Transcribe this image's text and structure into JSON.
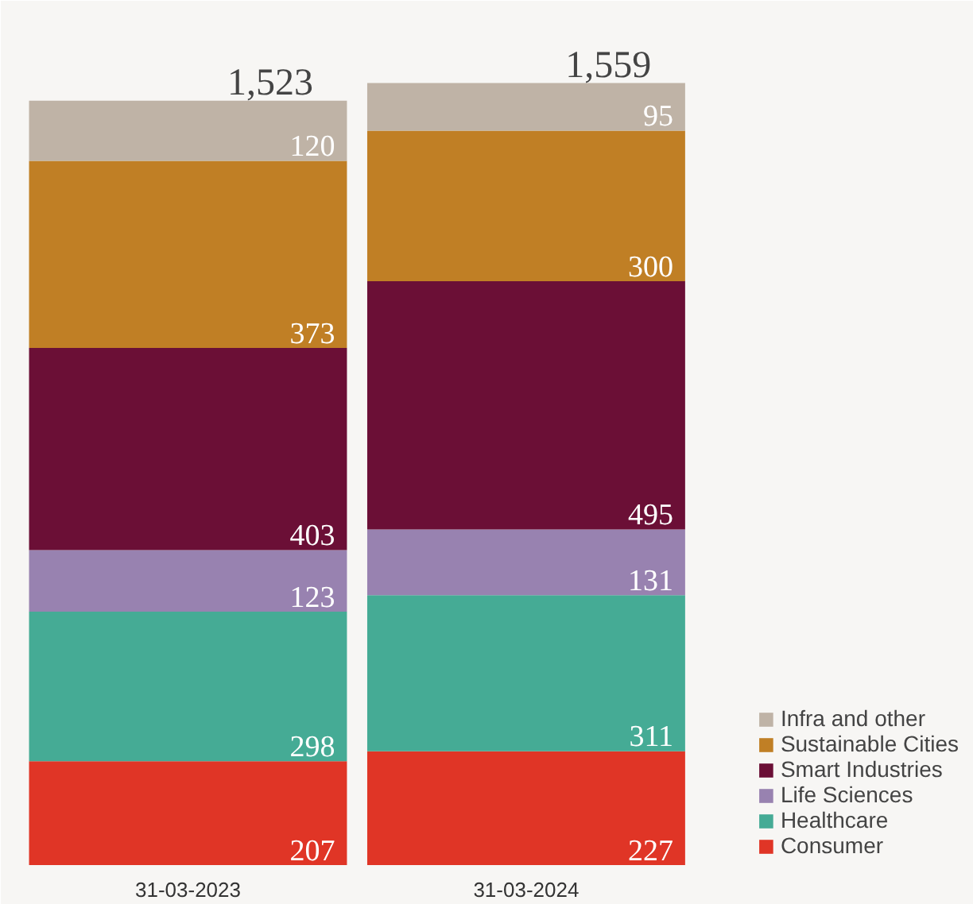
{
  "chart_data": {
    "type": "bar",
    "stacked": true,
    "categories": [
      "31-03-2023",
      "31-03-2024"
    ],
    "series": [
      {
        "name": "Consumer",
        "color": "#e03526",
        "values": [
          207,
          227
        ]
      },
      {
        "name": "Healthcare",
        "color": "#45ab95",
        "values": [
          298,
          311
        ]
      },
      {
        "name": "Life Sciences",
        "color": "#9882b0",
        "values": [
          123,
          131
        ]
      },
      {
        "name": "Smart Industries",
        "color": "#6b0f36",
        "values": [
          403,
          495
        ]
      },
      {
        "name": "Sustainable Cities",
        "color": "#c07f25",
        "values": [
          373,
          300
        ]
      },
      {
        "name": "Infra and other",
        "color": "#bfb3a6",
        "values": [
          120,
          95
        ]
      }
    ],
    "data_labels": true,
    "totals": [
      "1,523",
      "1,559"
    ],
    "legend": "bottom right"
  }
}
